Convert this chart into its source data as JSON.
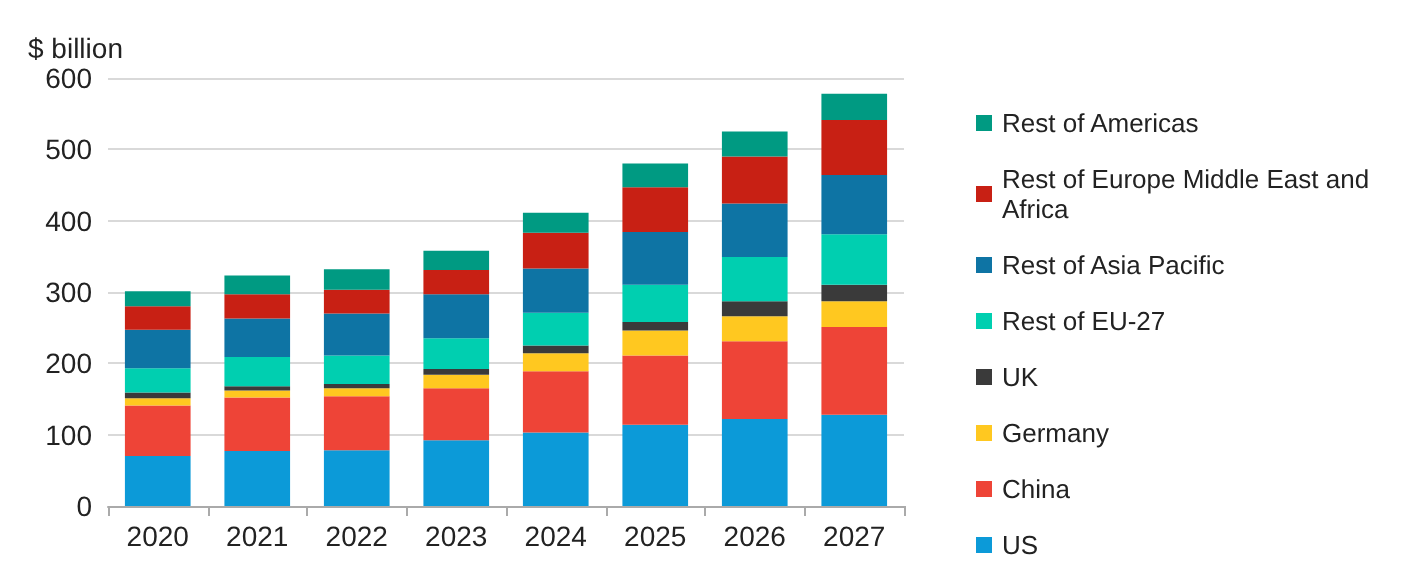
{
  "chart_data": {
    "type": "bar",
    "ylabel": "$ billion",
    "stacked": true,
    "categories": [
      "2020",
      "2021",
      "2022",
      "2023",
      "2024",
      "2025",
      "2026",
      "2027"
    ],
    "ylim": [
      0,
      600
    ],
    "yticks": [
      0,
      100,
      200,
      300,
      400,
      500,
      600
    ],
    "grid": "y",
    "legend": "right",
    "series": [
      {
        "name": "US",
        "color": "#0c9ad8",
        "values": [
          70,
          77,
          78,
          92,
          103,
          114,
          122,
          128
        ]
      },
      {
        "name": "China",
        "color": "#ee4437",
        "values": [
          71,
          75,
          76,
          73,
          86,
          97,
          109,
          123
        ]
      },
      {
        "name": "Germany",
        "color": "#ffc820",
        "values": [
          10,
          10,
          11,
          19,
          25,
          35,
          35,
          36
        ]
      },
      {
        "name": "UK",
        "color": "#3a3a3a",
        "values": [
          8,
          6,
          6,
          8,
          11,
          12,
          21,
          23
        ]
      },
      {
        "name": "Rest of EU-27",
        "color": "#00cfb0",
        "values": [
          34,
          41,
          40,
          43,
          46,
          52,
          62,
          71
        ]
      },
      {
        "name": "Rest of Asia Pacific",
        "color": "#0e74a4",
        "values": [
          54,
          54,
          59,
          62,
          62,
          74,
          75,
          83
        ]
      },
      {
        "name": "Rest of Europe Middle East and Africa",
        "color": "#c82014",
        "values": [
          33,
          34,
          33,
          34,
          50,
          63,
          66,
          77
        ]
      },
      {
        "name": "Rest of Americas",
        "color": "#009a82",
        "values": [
          21,
          26,
          29,
          27,
          28,
          33,
          35,
          37
        ]
      }
    ]
  }
}
